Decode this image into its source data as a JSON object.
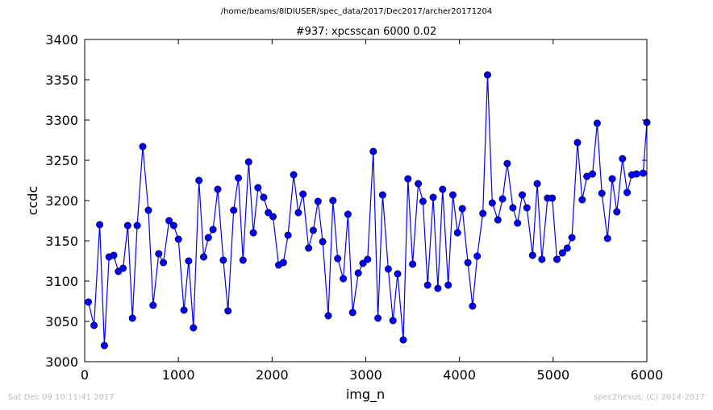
{
  "header": {
    "path": "/home/beams/8IDIUSER/spec_data/2017/Dec2017/archer20171204"
  },
  "footer": {
    "left": "Sat Dec 09 10:11:41 2017",
    "right": "spec2nexus, (C) 2014-2017"
  },
  "colors": {
    "series": "#0000ff"
  },
  "chart_data": {
    "type": "line",
    "title": "#937: xpcsscan 6000 0.02",
    "xlabel": "img_n",
    "ylabel": "ccdc",
    "xlim": [
      0,
      6000
    ],
    "ylim": [
      3000,
      3400
    ],
    "grid": false,
    "xticks": [
      0,
      1000,
      2000,
      3000,
      4000,
      5000,
      6000
    ],
    "yticks": [
      3000,
      3050,
      3100,
      3150,
      3200,
      3250,
      3300,
      3350,
      3400
    ],
    "series": [
      {
        "marker": "circle",
        "x": [
          40,
          100,
          160,
          210,
          260,
          310,
          360,
          410,
          460,
          510,
          560,
          620,
          680,
          730,
          790,
          840,
          900,
          950,
          1000,
          1060,
          1110,
          1160,
          1220,
          1270,
          1320,
          1370,
          1420,
          1480,
          1530,
          1590,
          1640,
          1690,
          1750,
          1800,
          1850,
          1910,
          1960,
          2010,
          2070,
          2120,
          2170,
          2230,
          2280,
          2330,
          2390,
          2440,
          2490,
          2540,
          2600,
          2650,
          2700,
          2760,
          2810,
          2860,
          2920,
          2970,
          3020,
          3080,
          3130,
          3180,
          3240,
          3290,
          3340,
          3400,
          3450,
          3500,
          3560,
          3610,
          3660,
          3720,
          3770,
          3820,
          3880,
          3930,
          3980,
          4030,
          4090,
          4140,
          4190,
          4250,
          4300,
          4350,
          4410,
          4460,
          4510,
          4570,
          4620,
          4670,
          4720,
          4780,
          4830,
          4880,
          4940,
          4990,
          5040,
          5100,
          5150,
          5200,
          5260,
          5310,
          5360,
          5420,
          5470,
          5520,
          5580,
          5630,
          5680,
          5740,
          5790,
          5840,
          5890,
          5960,
          6000
        ],
        "y": [
          3074,
          3045,
          3170,
          3020,
          3130,
          3132,
          3112,
          3116,
          3169,
          3054,
          3169,
          3267,
          3188,
          3070,
          3134,
          3123,
          3175,
          3169,
          3152,
          3064,
          3125,
          3042,
          3225,
          3130,
          3154,
          3164,
          3214,
          3126,
          3063,
          3188,
          3228,
          3126,
          3248,
          3160,
          3216,
          3204,
          3185,
          3180,
          3120,
          3123,
          3157,
          3232,
          3185,
          3208,
          3141,
          3163,
          3199,
          3149,
          3057,
          3200,
          3128,
          3103,
          3183,
          3061,
          3110,
          3122,
          3127,
          3261,
          3054,
          3207,
          3115,
          3051,
          3109,
          3027,
          3227,
          3121,
          3221,
          3199,
          3095,
          3204,
          3091,
          3214,
          3095,
          3207,
          3160,
          3190,
          3123,
          3069,
          3131,
          3184,
          3356,
          3197,
          3176,
          3202,
          3246,
          3191,
          3172,
          3207,
          3191,
          3132,
          3221,
          3127,
          3203,
          3203,
          3127,
          3135,
          3141,
          3154,
          3272,
          3201,
          3230,
          3233,
          3296,
          3209,
          3153,
          3227,
          3186,
          3252,
          3210,
          3232,
          3233,
          3234,
          3297
        ]
      }
    ]
  }
}
